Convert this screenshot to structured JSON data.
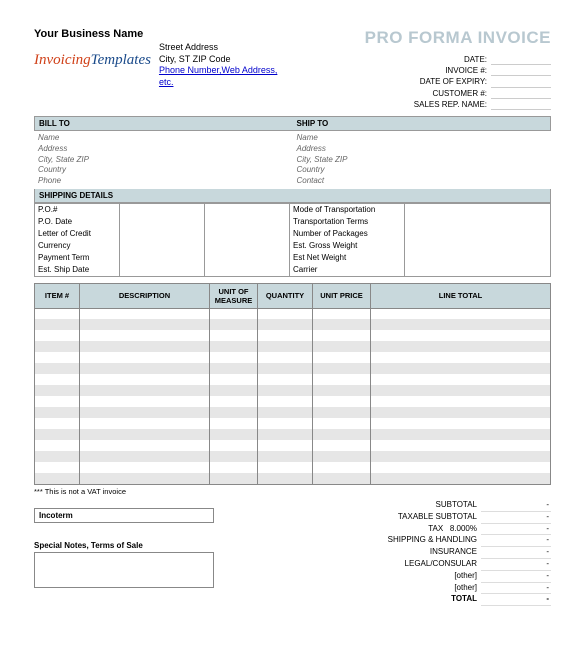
{
  "header": {
    "biz_name": "Your Business Name",
    "street": "Street Address",
    "city_line": "City, ST  ZIP Code",
    "contact_link": "Phone Number,Web Address, etc.",
    "title": "PRO FORMA INVOICE",
    "logo_part1": "Invoicing",
    "logo_part2": "Templates"
  },
  "meta": {
    "date": "DATE:",
    "invoice_no": "INVOICE #:",
    "expiry": "DATE OF EXPIRY:",
    "customer_no": "CUSTOMER #:",
    "sales_rep": "SALES REP. NAME:"
  },
  "bill_to": {
    "heading": "BILL TO",
    "name": "Name",
    "address": "Address",
    "city": "City, State ZIP",
    "country": "Country",
    "phone": "Phone"
  },
  "ship_to": {
    "heading": "SHIP TO",
    "name": "Name",
    "address": "Address",
    "city": "City, State ZIP",
    "country": "Country",
    "contact": "Contact"
  },
  "shipping": {
    "heading": "SHIPPING DETAILS",
    "left": {
      "po": "P.O.#",
      "po_date": "P.O. Date",
      "loc": "Letter of Credit",
      "currency": "Currency",
      "pay_term": "Payment Term",
      "est_ship": "Est. Ship Date"
    },
    "right": {
      "mode": "Mode of Transportation",
      "terms": "Transportation Terms",
      "packages": "Number of Packages",
      "gross": "Est. Gross Weight",
      "net": "Est Net Weight",
      "carrier": "Carrier"
    }
  },
  "items": {
    "col_item": "ITEM #",
    "col_desc": "DESCRIPTION",
    "col_uom": "UNIT OF MEASURE",
    "col_qty": "QUANTITY",
    "col_price": "UNIT PRICE",
    "col_total": "LINE TOTAL"
  },
  "vat_note": "*** This is not a VAT invoice",
  "incoterm": "Incoterm",
  "notes_label": "Special Notes, Terms of Sale",
  "totals": {
    "subtotal": "SUBTOTAL",
    "taxable": "TAXABLE SUBTOTAL",
    "tax": "TAX",
    "tax_rate": "8.000%",
    "ship_handle": "SHIPPING & HANDLING",
    "insurance": "INSURANCE",
    "legal": "LEGAL/CONSULAR",
    "other1": "[other]",
    "other2": "[other]",
    "total": "TOTAL",
    "dash": "-"
  },
  "colors": {
    "section_bg": "#c8d8dc",
    "title_color": "#b8c8d0",
    "alt_row": "#e6e6e6",
    "border": "#888888"
  }
}
